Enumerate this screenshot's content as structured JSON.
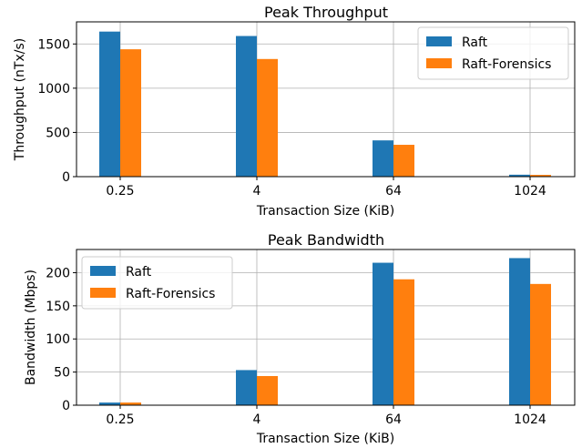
{
  "colors": {
    "raft": "#1f77b4",
    "forensics": "#ff7f0e",
    "grid": "#b0b0b0"
  },
  "chart_data": [
    {
      "type": "bar",
      "title": "Peak Throughput",
      "xlabel": "Transaction Size (KiB)",
      "ylabel": "Throughput (nTx/s)",
      "categories": [
        "0.25",
        "4",
        "64",
        "1024"
      ],
      "series": [
        {
          "name": "Raft",
          "values": [
            1640,
            1590,
            410,
            22
          ]
        },
        {
          "name": "Raft-Forensics",
          "values": [
            1440,
            1330,
            360,
            20
          ]
        }
      ],
      "ylim": [
        0,
        1750
      ],
      "yticks": [
        0,
        500,
        1000,
        1500
      ],
      "grid": true,
      "legend": "top-right"
    },
    {
      "type": "bar",
      "title": "Peak Bandwidth",
      "xlabel": "Transaction Size (KiB)",
      "ylabel": "Bandwidth (Mbps)",
      "categories": [
        "0.25",
        "4",
        "64",
        "1024"
      ],
      "series": [
        {
          "name": "Raft",
          "values": [
            4,
            53,
            215,
            222
          ]
        },
        {
          "name": "Raft-Forensics",
          "values": [
            4,
            44,
            190,
            183
          ]
        }
      ],
      "ylim": [
        0,
        235
      ],
      "yticks": [
        0,
        50,
        100,
        150,
        200
      ],
      "grid": true,
      "legend": "top-left"
    }
  ]
}
